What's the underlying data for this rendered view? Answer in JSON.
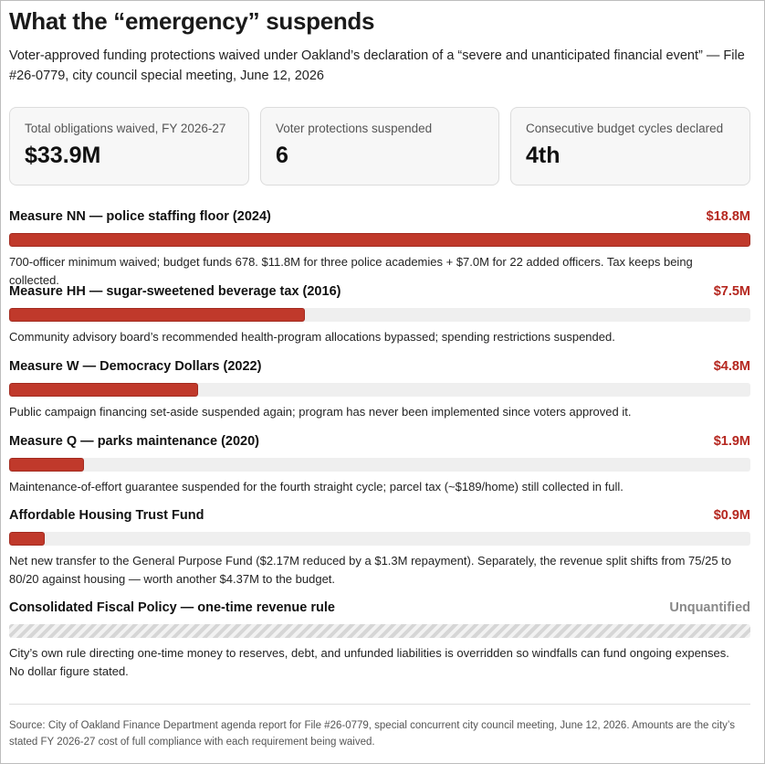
{
  "header": {
    "title": "What the “emergency” suspends",
    "subtitle": "Voter-approved funding protections waived under Oakland’s declaration of a “severe and unanticipated financial event” — File #26-0779, city council special meeting, June 12, 2026"
  },
  "stats": [
    {
      "label": "Total obligations waived, FY 2026-27",
      "value": "$33.9M"
    },
    {
      "label": "Voter protections suspended",
      "value": "6"
    },
    {
      "label": "Consecutive budget cycles declared",
      "value": "4th"
    }
  ],
  "chart_data": {
    "type": "bar",
    "orientation": "horizontal",
    "unit": "$M",
    "xlim": [
      0,
      18.8
    ],
    "categories": [
      "Measure NN — police staffing floor (2024)",
      "Measure HH — sugar-sweetened beverage tax (2016)",
      "Measure W — Democracy Dollars (2022)",
      "Measure Q — parks maintenance (2020)",
      "Affordable Housing Trust Fund",
      "Consolidated Fiscal Policy — one-time revenue rule"
    ],
    "values": [
      18.8,
      7.5,
      4.8,
      1.9,
      0.9,
      null
    ],
    "value_labels": [
      "$18.8M",
      "$7.5M",
      "$4.8M",
      "$1.9M",
      "$0.9M",
      "Unquantified"
    ],
    "notes": [
      "700-officer minimum waived; budget funds 678. $11.8M for three police academies + $7.0M for 22 added officers. Tax keeps being collected.",
      "Community advisory board’s recommended health-program allocations bypassed; spending restrictions suspended.",
      "Public campaign financing set-aside suspended again; program has never been implemented since voters approved it.",
      "Maintenance-of-effort guarantee suspended for the fourth straight cycle; parcel tax (~$189/home) still collected in full.",
      "Net new transfer to the General Purpose Fund ($2.17M reduced by a $1.3M repayment). Separately, the revenue split shifts from 75/25 to 80/20 against housing — worth another $4.37M to the budget.",
      "City’s own rule directing one-time money to reserves, debt, and unfunded liabilities is overridden so windfalls can fund ongoing expenses. No dollar figure stated."
    ],
    "colors": {
      "bar": "#c0392b",
      "value_text": "#b5271f",
      "unquantified_text": "#888888"
    }
  },
  "footer": {
    "source": "Source: City of Oakland Finance Department agenda report for File #26-0779, special concurrent city council meeting, June 12, 2026. Amounts are the city’s stated FY 2026-27 cost of full compliance with each requirement being waived."
  }
}
